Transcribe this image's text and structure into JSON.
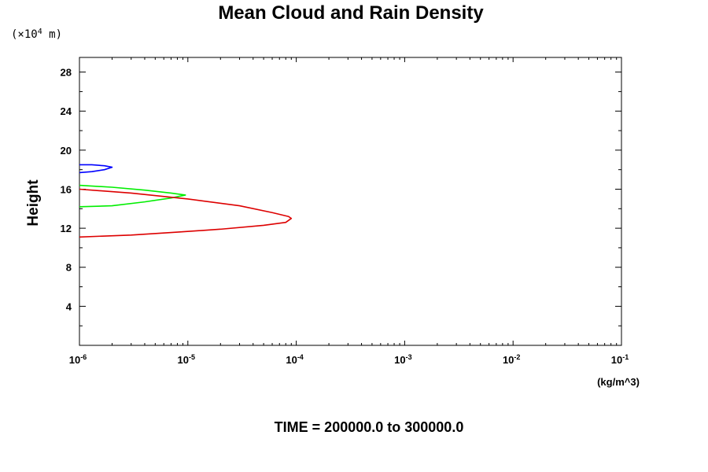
{
  "chart_data": {
    "type": "line",
    "title": "Mean Cloud and Rain Density",
    "y_scale_note_prefix": "(×10",
    "y_scale_note_exp": "4",
    "y_scale_note_suffix": " m)",
    "ylabel": "Height",
    "xunit": "(kg/m^3)",
    "footer": "TIME = 200000.0 to 300000.0",
    "x_scale": "log",
    "xlim": [
      1e-06,
      0.1
    ],
    "ylim": [
      0,
      29.5
    ],
    "x_ticks": [
      {
        "base": "10",
        "exp": "-6",
        "value": 1e-06
      },
      {
        "base": "10",
        "exp": "-5",
        "value": 1e-05
      },
      {
        "base": "10",
        "exp": "-4",
        "value": 0.0001
      },
      {
        "base": "10",
        "exp": "-3",
        "value": 0.001
      },
      {
        "base": "10",
        "exp": "-2",
        "value": 0.01
      },
      {
        "base": "10",
        "exp": "-1",
        "value": 0.1
      }
    ],
    "y_ticks": [
      "4",
      "8",
      "12",
      "16",
      "20",
      "24",
      "28"
    ],
    "grid": false,
    "series": [
      {
        "color": "#0000ff",
        "points": [
          [
            1e-06,
            18.5
          ],
          [
            1.3e-06,
            18.5
          ],
          [
            1.7e-06,
            18.4
          ],
          [
            2e-06,
            18.25
          ],
          [
            1.7e-06,
            18.0
          ],
          [
            1.3e-06,
            17.8
          ],
          [
            1e-06,
            17.7
          ]
        ]
      },
      {
        "color": "#00ee00",
        "points": [
          [
            1e-06,
            16.4
          ],
          [
            2e-06,
            16.2
          ],
          [
            4e-06,
            15.9
          ],
          [
            7e-06,
            15.6
          ],
          [
            9.5e-06,
            15.4
          ],
          [
            7e-06,
            15.1
          ],
          [
            4e-06,
            14.7
          ],
          [
            2e-06,
            14.3
          ],
          [
            1e-06,
            14.2
          ]
        ]
      },
      {
        "color": "#dd0000",
        "points": [
          [
            1e-06,
            16.0
          ],
          [
            3e-06,
            15.6
          ],
          [
            1e-05,
            15.0
          ],
          [
            3e-05,
            14.3
          ],
          [
            6e-05,
            13.6
          ],
          [
            8.5e-05,
            13.2
          ],
          [
            9e-05,
            13.0
          ],
          [
            8e-05,
            12.6
          ],
          [
            5e-05,
            12.3
          ],
          [
            2e-05,
            11.9
          ],
          [
            8e-06,
            11.6
          ],
          [
            3e-06,
            11.3
          ],
          [
            1e-06,
            11.1
          ]
        ]
      }
    ]
  }
}
